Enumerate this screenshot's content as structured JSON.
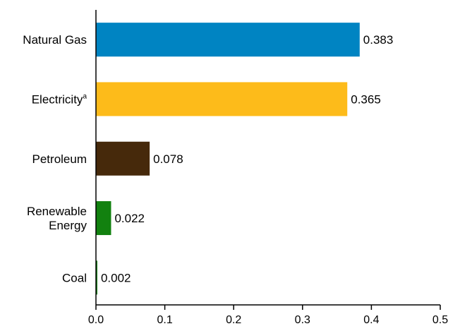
{
  "chart_data": {
    "type": "bar",
    "orientation": "horizontal",
    "title": "",
    "xlabel": "",
    "ylabel": "",
    "xlim": [
      0,
      0.5
    ],
    "grid": false,
    "legend": "none",
    "categories": [
      {
        "label": "Natural Gas",
        "superscript": "",
        "value": 0.383,
        "value_label": "0.383",
        "color": "#0084C2"
      },
      {
        "label": "Electricity",
        "superscript": "a",
        "value": 0.365,
        "value_label": "0.365",
        "color": "#FDBB1A"
      },
      {
        "label": "Petroleum",
        "superscript": "",
        "value": 0.078,
        "value_label": "0.078",
        "color": "#46290B"
      },
      {
        "label": "Renewable Energy",
        "superscript": "",
        "value": 0.022,
        "value_label": "0.022",
        "color": "#12810F"
      },
      {
        "label": "Coal",
        "superscript": "",
        "value": 0.002,
        "value_label": "0.002",
        "color": "#12810F"
      }
    ],
    "x_ticks": [
      "0.0",
      "0.1",
      "0.2",
      "0.3",
      "0.4",
      "0.5"
    ]
  }
}
